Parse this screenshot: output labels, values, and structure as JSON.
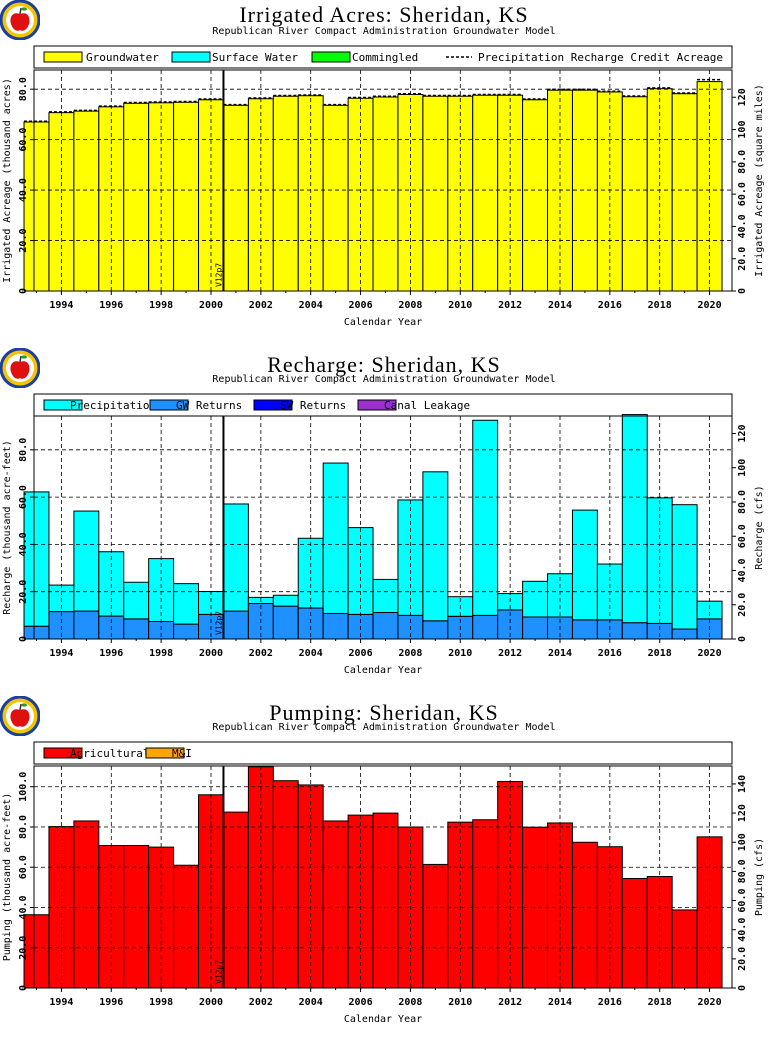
{
  "colors": {
    "groundwater": "#ffff00",
    "surface_water": "#00ffff",
    "commingled": "#00ff00",
    "precipitation": "#00ffff",
    "gw_returns": "#1e90ff",
    "sw_returns": "#0000ff",
    "canal_leakage": "#9932cc",
    "agricultural": "#ff0000",
    "mi": "#ffa500"
  },
  "icons": {
    "logo": "apple-logo-icon"
  },
  "panels": [
    {
      "title": "Irrigated Acres: Sheridan, KS",
      "subtitle": "Republican River Compact Administration Groundwater Model",
      "legend": [
        "Groundwater",
        "Surface Water",
        "Commingled",
        "Precipitation Recharge Credit Acreage"
      ],
      "xlabel": "Calendar Year",
      "ylabel": "Irrigated Acreage (thousand acres)",
      "y2label": "Irrigated Acreage (square miles)",
      "marker": "V12p7"
    },
    {
      "title": "Recharge: Sheridan, KS",
      "subtitle": "Republican River Compact Administration Groundwater Model",
      "legend": [
        "Precipitation",
        "GW Returns",
        "SW Returns",
        "Canal Leakage"
      ],
      "xlabel": "Calendar Year",
      "ylabel": "Recharge (thousand acre-feet)",
      "y2label": "Recharge (cfs)",
      "marker": "V12p7"
    },
    {
      "title": "Pumping: Sheridan, KS",
      "subtitle": "Republican River Compact Administration Groundwater Model",
      "legend": [
        "Agricultural",
        "M&I"
      ],
      "xlabel": "Calendar Year",
      "ylabel": "Pumping (thousand acre-feet)",
      "y2label": "Pumping (cfs)",
      "marker": "V12p7"
    }
  ],
  "chart_data": [
    {
      "type": "bar",
      "stacked": true,
      "title": "Irrigated Acres: Sheridan, KS",
      "subtitle": "Republican River Compact Administration Groundwater Model",
      "xlabel": "Calendar Year",
      "ylabel": "Irrigated Acreage (thousand acres)",
      "y2label": "Irrigated Acreage (square miles)",
      "x": [
        1993,
        1994,
        1995,
        1996,
        1997,
        1998,
        1999,
        2000,
        2001,
        2002,
        2003,
        2004,
        2005,
        2006,
        2007,
        2008,
        2009,
        2010,
        2011,
        2012,
        2013,
        2014,
        2015,
        2016,
        2017,
        2018,
        2019,
        2020
      ],
      "xticks": [
        1994,
        1996,
        1998,
        2000,
        2002,
        2004,
        2006,
        2008,
        2010,
        2012,
        2014,
        2016,
        2018,
        2020
      ],
      "xlim": [
        1992.9,
        2020.9
      ],
      "ylim": [
        0,
        87.6
      ],
      "yticks": [
        20,
        40,
        60,
        80
      ],
      "y2lim": [
        0,
        136.9
      ],
      "y2ticks": [
        0,
        20,
        40,
        60,
        80,
        100,
        120
      ],
      "series": [
        {
          "name": "Groundwater",
          "values": [
            67.0,
            70.7,
            71.3,
            73.0,
            74.4,
            74.6,
            74.8,
            75.8,
            73.6,
            76.2,
            77.2,
            77.4,
            73.6,
            76.4,
            76.9,
            77.9,
            77.2,
            77.2,
            77.6,
            77.6,
            75.8,
            79.6,
            79.6,
            78.9,
            77.0,
            80.2,
            78.2,
            83.0
          ]
        },
        {
          "name": "Surface Water",
          "values": [
            0,
            0,
            0,
            0,
            0,
            0,
            0,
            0,
            0,
            0,
            0,
            0,
            0,
            0,
            0,
            0,
            0,
            0,
            0,
            0,
            0,
            0,
            0,
            0,
            0,
            0,
            0,
            0
          ]
        },
        {
          "name": "Commingled",
          "values": [
            0,
            0,
            0,
            0,
            0,
            0,
            0,
            0,
            0,
            0,
            0,
            0,
            0,
            0,
            0,
            0,
            0,
            0,
            0,
            0,
            0,
            0,
            0,
            0,
            0,
            0,
            0,
            0
          ]
        }
      ],
      "line": {
        "name": "Precipitation Recharge Credit Acreage",
        "values": [
          67.3,
          71.0,
          71.6,
          73.3,
          74.7,
          74.9,
          75.1,
          76.1,
          73.9,
          76.5,
          77.5,
          77.7,
          73.9,
          76.7,
          77.2,
          78.2,
          77.5,
          77.5,
          77.9,
          77.9,
          76.1,
          79.9,
          79.9,
          79.2,
          77.3,
          80.5,
          78.5,
          83.8
        ]
      },
      "grid": true,
      "legend": "top"
    },
    {
      "type": "bar",
      "stacked": true,
      "title": "Recharge: Sheridan, KS",
      "subtitle": "Republican River Compact Administration Groundwater Model",
      "xlabel": "Calendar Year",
      "ylabel": "Recharge (thousand acre-feet)",
      "y2label": "Recharge (cfs)",
      "x": [
        1993,
        1994,
        1995,
        1996,
        1997,
        1998,
        1999,
        2000,
        2001,
        2002,
        2003,
        2004,
        2005,
        2006,
        2007,
        2008,
        2009,
        2010,
        2011,
        2012,
        2013,
        2014,
        2015,
        2016,
        2017,
        2018,
        2019,
        2020
      ],
      "xticks": [
        1994,
        1996,
        1998,
        2000,
        2002,
        2004,
        2006,
        2008,
        2010,
        2012,
        2014,
        2016,
        2018,
        2020
      ],
      "xlim": [
        1992.9,
        2020.9
      ],
      "ylim": [
        0,
        94.3
      ],
      "yticks": [
        20,
        40,
        60,
        80
      ],
      "y2lim": [
        0,
        130.2
      ],
      "y2ticks": [
        20,
        40,
        60,
        80,
        100,
        120
      ],
      "series": [
        {
          "name": "GW Returns",
          "values": [
            5.4,
            11.6,
            11.8,
            9.7,
            8.5,
            7.4,
            6.3,
            10.4,
            11.8,
            15.0,
            13.9,
            13.1,
            10.8,
            10.4,
            11.2,
            10.0,
            7.7,
            9.6,
            10.0,
            12.3,
            9.3,
            9.3,
            8.1,
            8.1,
            6.9,
            6.6,
            4.2,
            8.5
          ]
        },
        {
          "name": "SW Returns",
          "values": [
            0,
            0,
            0,
            0,
            0,
            0,
            0,
            0,
            0,
            0,
            0,
            0,
            0,
            0,
            0,
            0,
            0,
            0,
            0,
            0,
            0,
            0,
            0,
            0,
            0,
            0,
            0,
            0
          ]
        },
        {
          "name": "Canal Leakage",
          "values": [
            0,
            0,
            0,
            0,
            0,
            0,
            0,
            0,
            0,
            0,
            0,
            0,
            0,
            0,
            0,
            0,
            0,
            0,
            0,
            0,
            0,
            0,
            0,
            0,
            0,
            0,
            0,
            0
          ]
        },
        {
          "name": "Precipitation",
          "values": [
            56.8,
            11.2,
            42.3,
            27.2,
            15.5,
            26.6,
            17.1,
            9.7,
            45.3,
            2.6,
            4.6,
            29.5,
            63.6,
            36.7,
            14.0,
            48.8,
            63.0,
            8.3,
            82.5,
            6.9,
            15.1,
            18.3,
            46.4,
            23.6,
            88.0,
            53.1,
            52.6,
            7.5
          ]
        }
      ],
      "grid": true,
      "legend": "top"
    },
    {
      "type": "bar",
      "stacked": true,
      "title": "Pumping: Sheridan, KS",
      "subtitle": "Republican River Compact Administration Groundwater Model",
      "xlabel": "Calendar Year",
      "ylabel": "Pumping (thousand acre-feet)",
      "y2label": "Pumping (cfs)",
      "x": [
        1993,
        1994,
        1995,
        1996,
        1997,
        1998,
        1999,
        2000,
        2001,
        2002,
        2003,
        2004,
        2005,
        2006,
        2007,
        2008,
        2009,
        2010,
        2011,
        2012,
        2013,
        2014,
        2015,
        2016,
        2017,
        2018,
        2019,
        2020
      ],
      "xticks": [
        1994,
        1996,
        1998,
        2000,
        2002,
        2004,
        2006,
        2008,
        2010,
        2012,
        2014,
        2016,
        2018,
        2020
      ],
      "xlim": [
        1992.9,
        2020.9
      ],
      "ylim": [
        0,
        110.3
      ],
      "yticks": [
        20,
        40,
        60,
        80,
        100
      ],
      "y2lim": [
        0,
        152.3
      ],
      "y2ticks": [
        20,
        40,
        60,
        80,
        100,
        120,
        140
      ],
      "series": [
        {
          "name": "Agricultural",
          "values": [
            36.4,
            80.2,
            83.0,
            70.8,
            70.8,
            70.0,
            61.0,
            96.0,
            87.4,
            109.9,
            103.0,
            100.9,
            83.0,
            85.9,
            86.9,
            80.0,
            61.4,
            82.4,
            83.6,
            102.6,
            79.9,
            82.0,
            72.4,
            70.2,
            54.4,
            55.4,
            38.8,
            75.1
          ]
        },
        {
          "name": "M&I",
          "values": [
            0,
            0,
            0,
            0,
            0,
            0,
            0,
            0,
            0,
            0,
            0,
            0,
            0,
            0,
            0,
            0,
            0,
            0,
            0,
            0,
            0,
            0,
            0,
            0,
            0,
            0,
            0,
            0
          ]
        }
      ],
      "grid": true,
      "legend": "top"
    }
  ]
}
